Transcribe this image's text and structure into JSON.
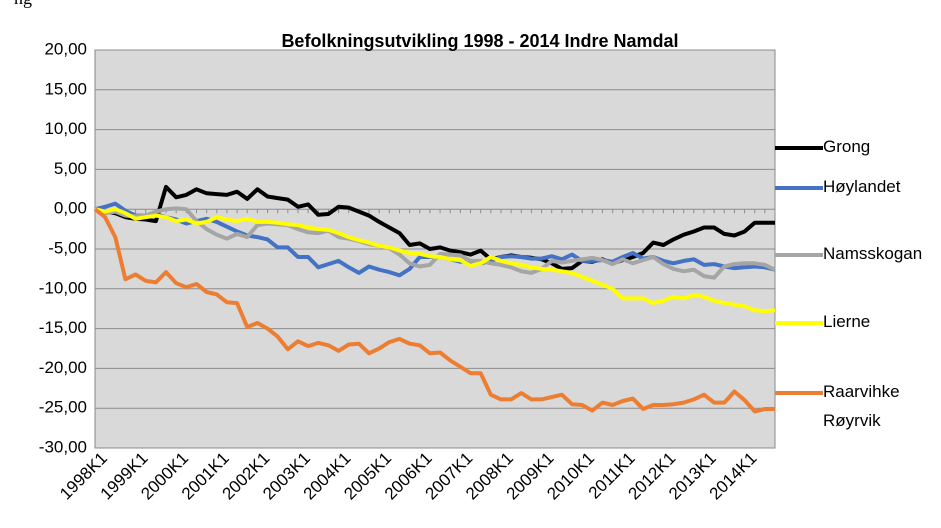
{
  "caption_fragment": "ng",
  "chart_data": {
    "type": "line",
    "title": "Befolkningsutvikling 1998 - 2014 Indre Namdal",
    "categories": [
      "1998K1",
      null,
      null,
      null,
      "1999K1",
      null,
      null,
      null,
      "2000K1",
      null,
      null,
      null,
      "2001K1",
      null,
      null,
      null,
      "2002K1",
      null,
      null,
      null,
      "2003K1",
      null,
      null,
      null,
      "2004K1",
      null,
      null,
      null,
      "2005K1",
      null,
      null,
      null,
      "2006K1",
      null,
      null,
      null,
      "2007K1",
      null,
      null,
      null,
      "2008K1",
      null,
      null,
      null,
      "2009K1",
      null,
      null,
      null,
      "2010K1",
      null,
      null,
      null,
      "2011K1",
      null,
      null,
      null,
      "2012K1",
      null,
      null,
      null,
      "2013K1",
      null,
      null,
      null,
      "2014K1",
      null,
      null,
      null
    ],
    "ylim": [
      -30,
      20
    ],
    "yticks": [
      {
        "value": -30,
        "label": "-30,00"
      },
      {
        "value": -25,
        "label": "-25,00"
      },
      {
        "value": -20,
        "label": "-20,00"
      },
      {
        "value": -15,
        "label": "-15,00"
      },
      {
        "value": -10,
        "label": "-10,00"
      },
      {
        "value": -5,
        "label": "-5,00"
      },
      {
        "value": 0,
        "label": "0,00"
      },
      {
        "value": 5,
        "label": "5,00"
      },
      {
        "value": 10,
        "label": "10,00"
      },
      {
        "value": 15,
        "label": "15,00"
      },
      {
        "value": 20,
        "label": "20,00"
      }
    ],
    "grid": true,
    "legend": "right",
    "series": [
      {
        "name": "Grong",
        "color": "#000000",
        "values": [
          0,
          -0.3,
          -0.5,
          -1,
          -1.2,
          -1.3,
          -1.5,
          2.8,
          1.5,
          1.8,
          2.5,
          2.0,
          1.9,
          1.8,
          2.2,
          1.3,
          2.5,
          1.6,
          1.4,
          1.2,
          0.3,
          0.6,
          -0.7,
          -0.6,
          0.3,
          0.2,
          -0.3,
          -0.8,
          -1.6,
          -2.3,
          -3.0,
          -4.5,
          -4.3,
          -5.0,
          -4.8,
          -5.2,
          -5.4,
          -5.7,
          -5.2,
          -6.3,
          -6.0,
          -5.8,
          -6.0,
          -6.1,
          -6.3,
          -6.8,
          -7.5,
          -7.4,
          -6.5,
          -6.6,
          -6.3,
          -6.8,
          -6.4,
          -6.0,
          -5.5,
          -4.2,
          -4.5,
          -3.8,
          -3.2,
          -2.8,
          -2.3,
          -2.3,
          -3.1,
          -3.3,
          -2.8,
          -1.7,
          -1.7,
          -1.7
        ]
      },
      {
        "name": "Høylandet",
        "color": "#4472c4",
        "values": [
          0,
          0.3,
          0.7,
          -0.2,
          -0.8,
          -0.8,
          -0.6,
          -1.0,
          -1.3,
          -1.8,
          -1.5,
          -1.2,
          -1.6,
          -2.2,
          -2.8,
          -3.3,
          -3.5,
          -3.8,
          -4.8,
          -4.8,
          -6.0,
          -6.0,
          -7.3,
          -6.9,
          -6.5,
          -7.3,
          -8.0,
          -7.2,
          -7.6,
          -7.9,
          -8.3,
          -7.5,
          -6.0,
          -6.0,
          -6.0,
          -6.3,
          -6.6,
          -6.6,
          -6.8,
          -6.5,
          -6.0,
          -5.9,
          -6.0,
          -6.2,
          -6.2,
          -5.9,
          -6.3,
          -5.7,
          -6.5,
          -6.5,
          -6.4,
          -6.6,
          -6.0,
          -5.5,
          -6.2,
          -6.0,
          -6.5,
          -6.8,
          -6.5,
          -6.3,
          -7.0,
          -6.9,
          -7.2,
          -7.4,
          -7.3,
          -7.2,
          -7.3,
          -7.6
        ]
      },
      {
        "name": "Namsskogan",
        "color": "#a5a5a5",
        "values": [
          0,
          -0.5,
          -0.3,
          -0.8,
          -0.9,
          -0.8,
          -0.3,
          0,
          0.1,
          0,
          -1.5,
          -2.5,
          -3.2,
          -3.7,
          -3.1,
          -3.5,
          -2.0,
          -1.8,
          -1.9,
          -2.0,
          -2.5,
          -2.9,
          -3.0,
          -2.7,
          -3.5,
          -3.7,
          -4.0,
          -4.4,
          -4.6,
          -4.9,
          -5.7,
          -6.8,
          -7.2,
          -7.0,
          -5.6,
          -5.7,
          -5.8,
          -6.5,
          -6.5,
          -6.8,
          -7.0,
          -7.3,
          -7.8,
          -8.0,
          -7.5,
          -6.5,
          -6.7,
          -6.5,
          -6.3,
          -6.1,
          -6.4,
          -6.9,
          -6.3,
          -6.8,
          -6.4,
          -6.0,
          -6.9,
          -7.5,
          -7.8,
          -7.6,
          -8.4,
          -8.6,
          -7.2,
          -6.9,
          -6.8,
          -6.8,
          -7.0,
          -7.6
        ]
      },
      {
        "name": "Lierne",
        "color": "#ffff00",
        "values": [
          0,
          -0.3,
          0,
          -0.5,
          -1.2,
          -1.0,
          -0.8,
          -1.0,
          -1.5,
          -1.3,
          -1.8,
          -1.6,
          -1.0,
          -1.3,
          -1.5,
          -1.2,
          -1.6,
          -1.6,
          -1.7,
          -1.9,
          -2.0,
          -2.3,
          -2.5,
          -2.6,
          -3.0,
          -3.5,
          -3.9,
          -4.2,
          -4.6,
          -4.8,
          -5.2,
          -5.5,
          -5.6,
          -5.9,
          -6.0,
          -6.3,
          -6.4,
          -7.1,
          -6.8,
          -6.0,
          -6.5,
          -6.8,
          -7.0,
          -7.3,
          -7.5,
          -7.6,
          -7.8,
          -8.0,
          -8.5,
          -9.0,
          -9.5,
          -10.0,
          -11.2,
          -11.2,
          -11.2,
          -11.8,
          -11.5,
          -11.0,
          -11.2,
          -10.8,
          -11.0,
          -11.5,
          -11.8,
          -12.0,
          -12.2,
          -12.7,
          -12.8,
          -12.7
        ]
      },
      {
        "name": "Raarvihke Røyrvik",
        "color": "#ed7d31",
        "values": [
          0,
          -1.0,
          -3.5,
          -8.8,
          -8.2,
          -9.0,
          -9.2,
          -7.9,
          -9.3,
          -9.8,
          -9.4,
          -10.4,
          -10.7,
          -11.7,
          -11.8,
          -14.8,
          -14.3,
          -15.0,
          -16.0,
          -17.6,
          -16.6,
          -17.2,
          -16.8,
          -17.1,
          -17.8,
          -17.0,
          -16.9,
          -18.1,
          -17.5,
          -16.7,
          -16.3,
          -16.9,
          -17.1,
          -18.1,
          -18.0,
          -19.0,
          -19.8,
          -20.6,
          -20.6,
          -23.3,
          -23.9,
          -23.9,
          -23.1,
          -23.9,
          -23.9,
          -23.6,
          -23.3,
          -24.5,
          -24.6,
          -25.3,
          -24.3,
          -24.6,
          -24.1,
          -23.8,
          -25.1,
          -24.6,
          -24.6,
          -24.5,
          -24.3,
          -23.9,
          -23.3,
          -24.3,
          -24.3,
          -22.9,
          -24.0,
          -25.4,
          -25.1,
          -25.1
        ]
      }
    ]
  }
}
